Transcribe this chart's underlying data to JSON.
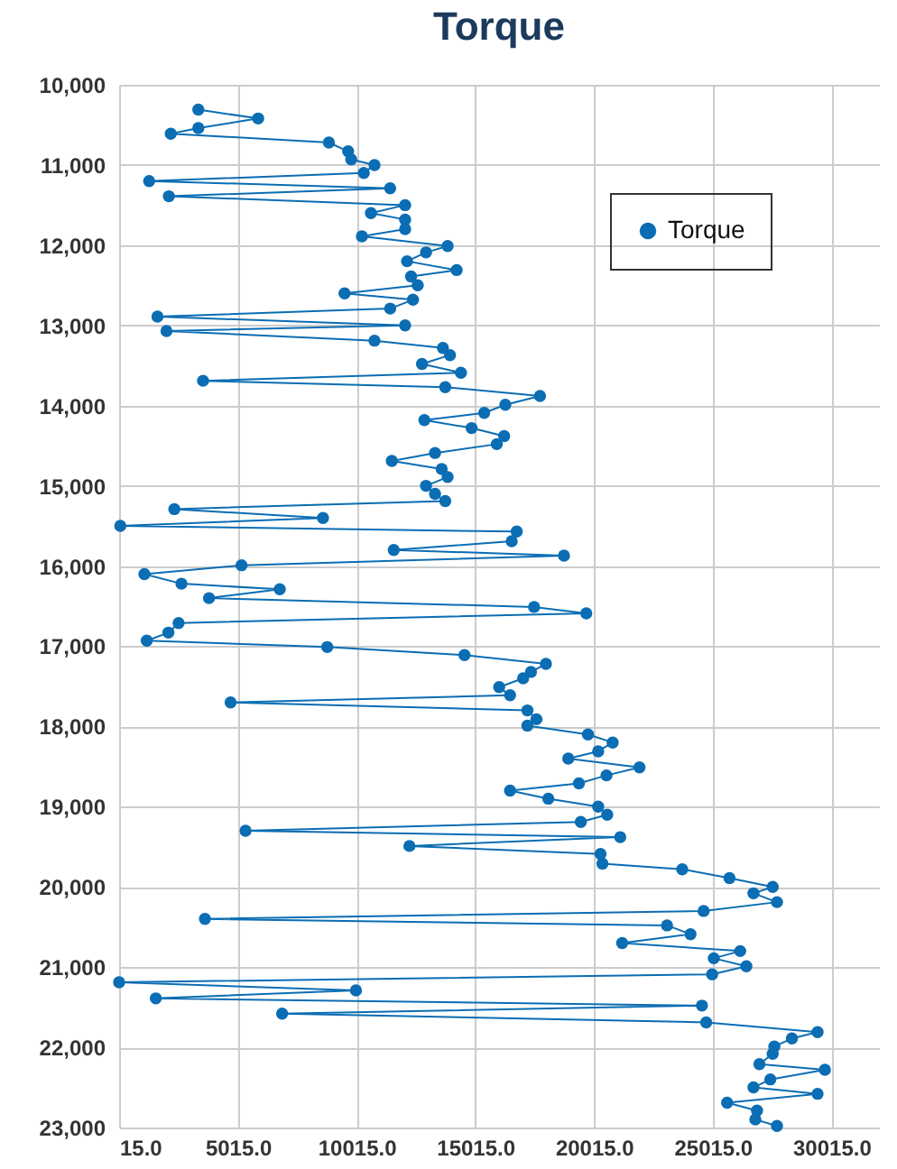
{
  "chart_data": {
    "type": "line",
    "title": "Torque",
    "legend": "top right",
    "grid": true,
    "marker": "circle",
    "line_style": "solid",
    "xlim": [
      15,
      32015
    ],
    "xticks": [
      {
        "value": 15,
        "label": "15.0"
      },
      {
        "value": 5015,
        "label": "5015.0"
      },
      {
        "value": 10015,
        "label": "10015.0"
      },
      {
        "value": 15015,
        "label": "15015.0"
      },
      {
        "value": 20015,
        "label": "20015.0"
      },
      {
        "value": 25015,
        "label": "25015.0"
      },
      {
        "value": 30015,
        "label": "30015.0"
      }
    ],
    "ylim": [
      23000,
      10000
    ],
    "yticks": [
      {
        "value": 10000,
        "label": "10,000"
      },
      {
        "value": 11000,
        "label": "11,000"
      },
      {
        "value": 12000,
        "label": "12,000"
      },
      {
        "value": 13000,
        "label": "13,000"
      },
      {
        "value": 14000,
        "label": "14,000"
      },
      {
        "value": 15000,
        "label": "15,000"
      },
      {
        "value": 16000,
        "label": "16,000"
      },
      {
        "value": 17000,
        "label": "17,000"
      },
      {
        "value": 18000,
        "label": "18,000"
      },
      {
        "value": 19000,
        "label": "19,000"
      },
      {
        "value": 20000,
        "label": "20,000"
      },
      {
        "value": 21000,
        "label": "21,000"
      },
      {
        "value": 22000,
        "label": "22,000"
      },
      {
        "value": 23000,
        "label": "23,000"
      }
    ],
    "series": [
      {
        "name": "Torque",
        "color": "#0b6db3",
        "x": [
          3350,
          5870,
          3350,
          2190,
          8850,
          9660,
          9790,
          10770,
          10320,
          1280,
          11430,
          2110,
          12060,
          10620,
          12060,
          12060,
          10240,
          13850,
          12940,
          12140,
          14230,
          12310,
          12590,
          9510,
          12390,
          11430,
          1630,
          12060,
          2010,
          10770,
          13650,
          13950,
          12770,
          14410,
          3550,
          13750,
          17740,
          16280,
          15390,
          12870,
          14860,
          16230,
          15920,
          13320,
          11500,
          13600,
          13850,
          12940,
          13320,
          13750,
          2340,
          8600,
          65,
          16760,
          16550,
          11580,
          18750,
          5170,
          1080,
          2640,
          6780,
          3800,
          17490,
          19690,
          2520,
          2090,
          1180,
          8780,
          14560,
          17990,
          17360,
          17030,
          16020,
          16480,
          4710,
          17210,
          17590,
          17210,
          19760,
          20800,
          20190,
          18930,
          21930,
          20540,
          19380,
          16480,
          18090,
          20190,
          20570,
          19460,
          5340,
          21120,
          12240,
          20290,
          20370,
          23730,
          25720,
          27540,
          26730,
          27720,
          24630,
          3630,
          23090,
          24080,
          21200,
          26170,
          25060,
          26430,
          24990,
          15,
          9990,
          1560,
          24560,
          6880,
          24740,
          29430,
          28350,
          27610,
          27540,
          26980,
          29740,
          27440,
          26730,
          29430,
          25620,
          26880,
          26810,
          27720
        ],
        "values": [
          10310,
          10420,
          10540,
          10610,
          10720,
          10830,
          10930,
          11000,
          11100,
          11200,
          11290,
          11390,
          11500,
          11600,
          11680,
          11800,
          11890,
          12010,
          12090,
          12200,
          12310,
          12390,
          12500,
          12600,
          12680,
          12790,
          12890,
          13000,
          13070,
          13190,
          13280,
          13370,
          13480,
          13590,
          13690,
          13770,
          13880,
          13990,
          14090,
          14180,
          14280,
          14380,
          14480,
          14590,
          14690,
          14790,
          14890,
          15000,
          15100,
          15190,
          15290,
          15400,
          15500,
          15570,
          15690,
          15800,
          15870,
          15990,
          16100,
          16220,
          16290,
          16400,
          16510,
          16590,
          16710,
          16830,
          16930,
          17010,
          17110,
          17220,
          17320,
          17400,
          17510,
          17610,
          17700,
          17800,
          17910,
          17990,
          18100,
          18200,
          18310,
          18400,
          18510,
          18610,
          18710,
          18800,
          18900,
          19000,
          19100,
          19190,
          19300,
          19380,
          19490,
          19590,
          19710,
          19780,
          19890,
          20000,
          20080,
          20190,
          20300,
          20400,
          20480,
          20590,
          20700,
          20800,
          20890,
          20990,
          21090,
          21190,
          21290,
          21390,
          21480,
          21580,
          21690,
          21810,
          21890,
          21990,
          22080,
          22210,
          22280,
          22400,
          22500,
          22580,
          22690,
          22790,
          22900,
          22980
        ]
      }
    ]
  }
}
